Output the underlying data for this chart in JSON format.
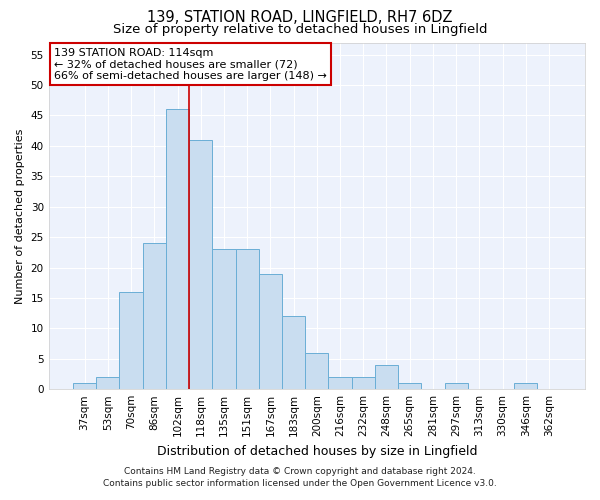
{
  "title": "139, STATION ROAD, LINGFIELD, RH7 6DZ",
  "subtitle": "Size of property relative to detached houses in Lingfield",
  "xlabel": "Distribution of detached houses by size in Lingfield",
  "ylabel": "Number of detached properties",
  "categories": [
    "37sqm",
    "53sqm",
    "70sqm",
    "86sqm",
    "102sqm",
    "118sqm",
    "135sqm",
    "151sqm",
    "167sqm",
    "183sqm",
    "200sqm",
    "216sqm",
    "232sqm",
    "248sqm",
    "265sqm",
    "281sqm",
    "297sqm",
    "313sqm",
    "330sqm",
    "346sqm",
    "362sqm"
  ],
  "values": [
    1,
    2,
    16,
    24,
    46,
    41,
    23,
    23,
    19,
    12,
    6,
    2,
    2,
    4,
    1,
    0,
    1,
    0,
    0,
    1,
    0
  ],
  "bar_color": "#c9ddf0",
  "bar_edge_color": "#6aaed6",
  "background_color": "#edf2fc",
  "grid_color": "#ffffff",
  "annotation_box_text": "139 STATION ROAD: 114sqm\n← 32% of detached houses are smaller (72)\n66% of semi-detached houses are larger (148) →",
  "annotation_box_color": "#ffffff",
  "annotation_box_edge_color": "#cc0000",
  "vline_color": "#cc0000",
  "vline_pos": 4.5,
  "ylim": [
    0,
    57
  ],
  "yticks": [
    0,
    5,
    10,
    15,
    20,
    25,
    30,
    35,
    40,
    45,
    50,
    55
  ],
  "footnote_line1": "Contains HM Land Registry data © Crown copyright and database right 2024.",
  "footnote_line2": "Contains public sector information licensed under the Open Government Licence v3.0.",
  "title_fontsize": 10.5,
  "subtitle_fontsize": 9.5,
  "xlabel_fontsize": 9,
  "ylabel_fontsize": 8,
  "tick_fontsize": 7.5,
  "annotation_fontsize": 8,
  "footnote_fontsize": 6.5
}
